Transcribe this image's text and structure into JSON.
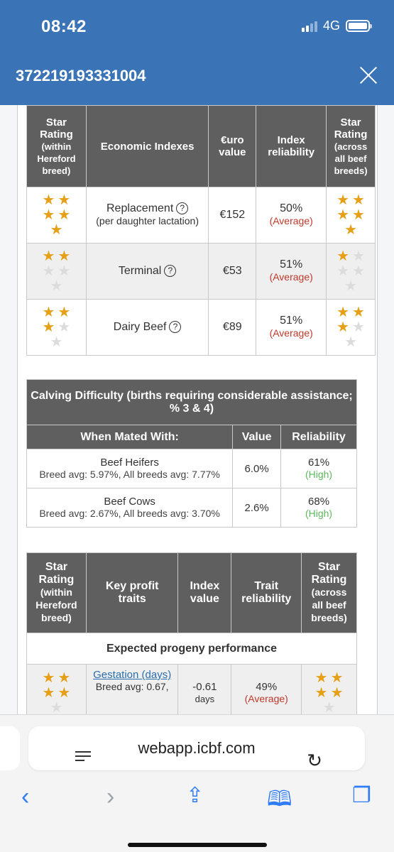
{
  "status": {
    "time": "08:42",
    "network": "4G"
  },
  "header": {
    "title": "372219193331004"
  },
  "index_table": {
    "headers": {
      "star_within": "Star Rating (within Hereford breed)",
      "economic": "Economic Indexes",
      "euro": "€uro value",
      "reliability": "Index reliability",
      "star_across": "Star Rating (across all beef breeds)"
    },
    "rows": [
      {
        "name": "Replacement",
        "note": "(per daughter lactation)",
        "value": "€152",
        "reliability": "50%",
        "level": "(Average)",
        "stars_within": 5,
        "stars_across": 5
      },
      {
        "name": "Terminal",
        "note": "",
        "value": "€53",
        "reliability": "51%",
        "level": "(Average)",
        "stars_within": 2,
        "stars_across": 1
      },
      {
        "name": "Dairy Beef",
        "note": "",
        "value": "€89",
        "reliability": "51%",
        "level": "(Average)",
        "stars_within": 3,
        "stars_across": 3
      }
    ]
  },
  "calving": {
    "title": "Calving Difficulty (births requiring considerable assistance; % 3 & 4)",
    "headers": {
      "mated": "When Mated With:",
      "value": "Value",
      "reliability": "Reliability"
    },
    "rows": [
      {
        "name": "Beef Heifers",
        "avg": "Breed avg: 5.97%, All breeds avg: 7.77%",
        "value": "6.0%",
        "reliability": "61%",
        "level": "(High)"
      },
      {
        "name": "Beef Cows",
        "avg": "Breed avg: 2.67%, All breeds avg: 3.70%",
        "value": "2.6%",
        "reliability": "68%",
        "level": "(High)"
      }
    ]
  },
  "traits": {
    "headers": {
      "star_within": "Star Rating (within Hereford breed)",
      "key": "Key profit traits",
      "index": "Index value",
      "reliability": "Trait reliability",
      "star_across": "Star Rating (across all beef breeds)"
    },
    "section": "Expected progeny performance",
    "rows": [
      {
        "name": "Gestation (days)",
        "avg": "Breed avg: 0.67,",
        "value": "-0.61",
        "unit": "days",
        "reliability": "49%",
        "level": "(Average)",
        "stars_within": 4,
        "stars_across": 4
      }
    ]
  },
  "browser": {
    "url": "webapp.icbf.com"
  },
  "colors": {
    "header": "#3a74b6",
    "star": "#e6a017",
    "average": "#c0392b",
    "high": "#5cb85c",
    "table_header": "#5f5f5f"
  }
}
